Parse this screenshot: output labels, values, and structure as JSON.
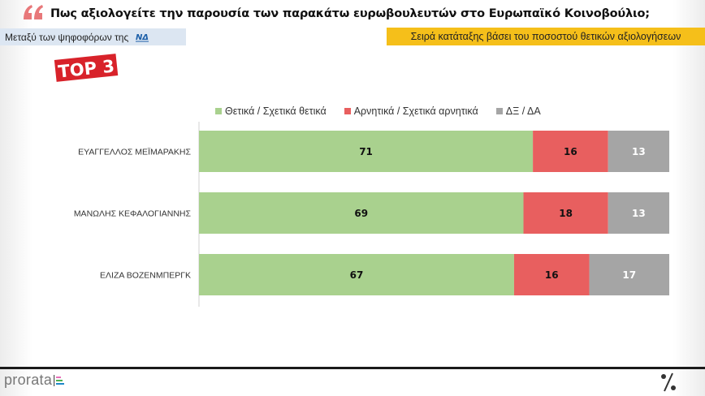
{
  "header": {
    "quote_icon": "quote-icon",
    "title": "Πως αξιολογείτε την παρουσία των παρακάτω ευρωβουλευτών στο Ευρωπαϊκό Κοινοβούλιο;",
    "subtitle": "Μεταξύ των ψηφοφόρων της",
    "party_logo": "ΝΔ",
    "order_note": "Σειρά κατάταξης βάσει του ποσοστού θετικών αξιολογήσεων",
    "badge": "TOP 3"
  },
  "colors": {
    "positive": "#a9d18e",
    "negative": "#e85f5f",
    "neutral": "#a5a5a5",
    "order_box": "#f5bf1a",
    "subtitle_box": "#dce6f2",
    "badge": "#d8222a"
  },
  "chart_data": {
    "type": "bar",
    "orientation": "horizontal",
    "stacked": true,
    "title": "Πως αξιολογείτε την παρουσία των παρακάτω ευρωβουλευτών στο Ευρωπαϊκό Κοινοβούλιο;",
    "categories": [
      "ΕΥΑΓΓΕΛΛΟΣ ΜΕΪΜΑΡΑΚΗΣ",
      "ΜΑΝΩΛΗΣ ΚΕΦΑΛΟΓΙΑΝΝΗΣ",
      "ΕΛΙΖΑ ΒΟΖΕΝΜΠΕΡΓΚ"
    ],
    "series": [
      {
        "name": "Θετικά / Σχετικά θετικά",
        "color": "#a9d18e",
        "label_color": "#111111",
        "values": [
          71,
          69,
          67
        ]
      },
      {
        "name": "Αρνητικά / Σχετικά αρνητικά",
        "color": "#e85f5f",
        "label_color": "#111111",
        "values": [
          16,
          18,
          16
        ]
      },
      {
        "name": "ΔΞ / ΔΑ",
        "color": "#a5a5a5",
        "label_color": "#ffffff",
        "values": [
          13,
          13,
          17
        ]
      }
    ],
    "xlim": [
      0,
      100
    ],
    "xlabel": "",
    "ylabel": "",
    "grid": false,
    "legend_position": "top",
    "data_labels": true
  },
  "footer": {
    "brand": "prorata",
    "percent_icon": "%"
  }
}
